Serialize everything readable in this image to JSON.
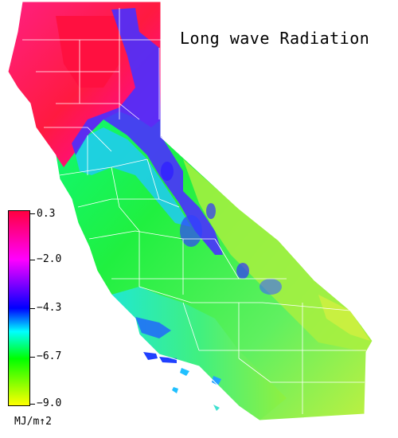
{
  "title": "Long wave Radiation",
  "legend": {
    "unit": "MJ/m↑2",
    "ticks": [
      "0.3",
      "−2.0",
      "−4.3",
      "−6.7",
      "−9.0"
    ],
    "colors": [
      "#ff0040",
      "#ff00ff",
      "#0000ff",
      "#00ffff",
      "#00ff00",
      "#ffff00"
    ]
  },
  "map": {
    "region": "California",
    "colors": {
      "north_coast": "#ff0080",
      "north_interior": "#ff2050",
      "sierra": "#4020ff",
      "central_valley": "#20f060",
      "southeast_desert": "#b0f040",
      "south_coast": "#20e0c0",
      "county_lines": "#ffffff"
    }
  }
}
